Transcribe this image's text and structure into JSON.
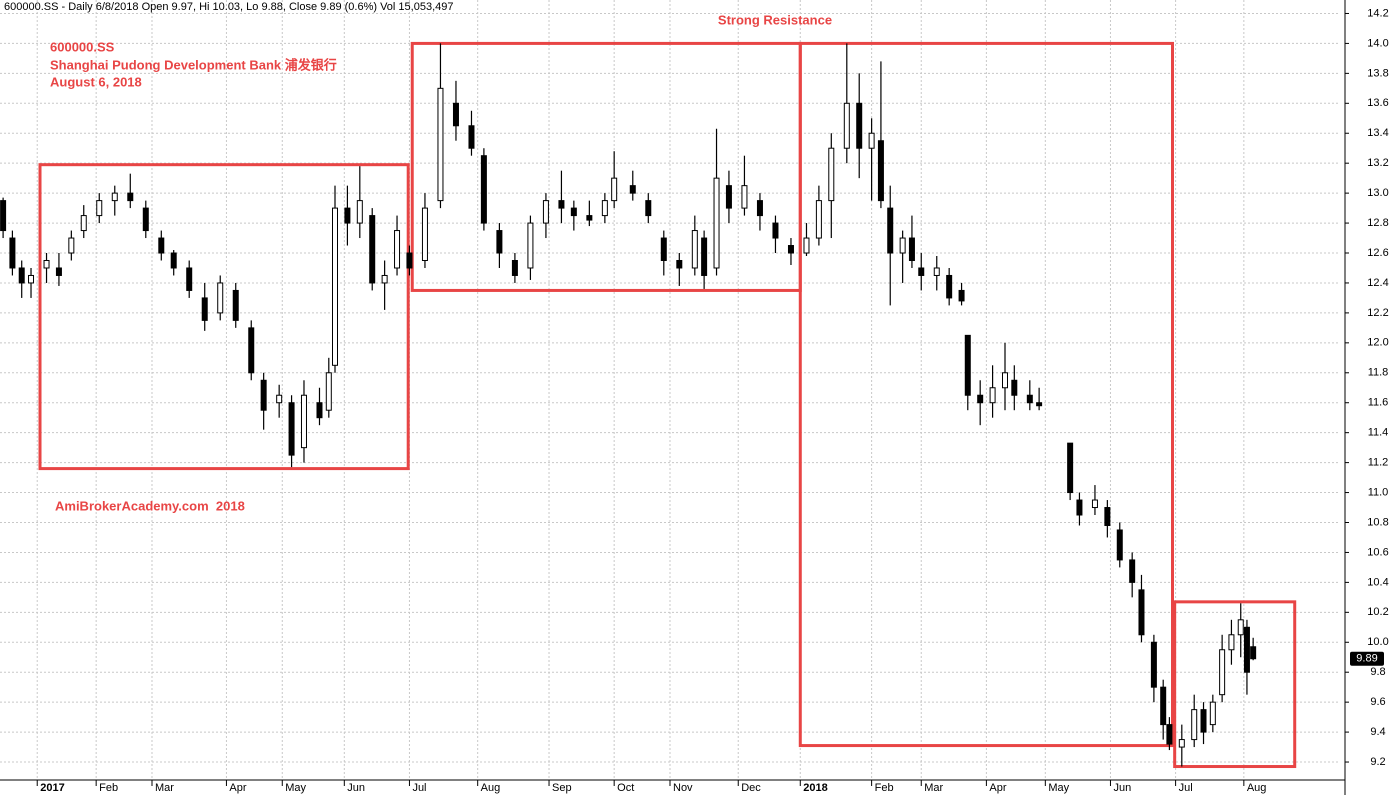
{
  "chart_data": {
    "type": "candlestick",
    "header": "600000.SS - Daily 6/8/2018 Open 9.97, Hi 10.03, Lo 9.88, Close 9.89 (0.6%) Vol 15,053,497",
    "title": "Strong Resistance",
    "annotations": [
      "600000.SS",
      "Shanghai Pudong Development Bank 浦发银行",
      "August 6, 2018"
    ],
    "watermark": "AmiBrokerAcademy.com  2018",
    "x": [
      1,
      4,
      7,
      10,
      15,
      19,
      23,
      27,
      32,
      37,
      42,
      47,
      52,
      56,
      61,
      66,
      71,
      76,
      81,
      85,
      90,
      94,
      98,
      103,
      106,
      108,
      112,
      116,
      120,
      124,
      128,
      132,
      137,
      142,
      147,
      152,
      156,
      161,
      166,
      171,
      176,
      181,
      185,
      190,
      195,
      198,
      204,
      209,
      214,
      219,
      224,
      227,
      231,
      235,
      240,
      245,
      250,
      255,
      260,
      264,
      268,
      273,
      277,
      281,
      284,
      287,
      291,
      294,
      297,
      302,
      306,
      310,
      312,
      316,
      320,
      324,
      327,
      332,
      335,
      345,
      348,
      353,
      357,
      361,
      365,
      368,
      372,
      375,
      377,
      381,
      385,
      388,
      391,
      394,
      397,
      400,
      402,
      404
    ],
    "open": [
      12.95,
      12.7,
      12.5,
      12.4,
      12.5,
      12.5,
      12.6,
      12.75,
      12.85,
      12.95,
      13.0,
      12.9,
      12.7,
      12.6,
      12.5,
      12.3,
      12.2,
      12.35,
      12.1,
      11.75,
      11.6,
      11.6,
      11.3,
      11.6,
      11.55,
      11.85,
      12.9,
      12.8,
      12.85,
      12.4,
      12.5,
      12.6,
      12.55,
      12.95,
      13.6,
      13.45,
      13.25,
      12.75,
      12.55,
      12.5,
      12.8,
      12.95,
      12.9,
      12.85,
      12.85,
      12.95,
      13.05,
      12.95,
      12.7,
      12.55,
      12.5,
      12.7,
      12.5,
      13.05,
      12.9,
      12.95,
      12.8,
      12.65,
      12.6,
      12.7,
      12.95,
      13.3,
      13.6,
      13.3,
      13.35,
      12.9,
      12.6,
      12.7,
      12.5,
      12.45,
      12.45,
      12.35,
      12.05,
      11.65,
      11.6,
      11.7,
      11.75,
      11.65,
      11.6,
      11.33,
      10.95,
      10.9,
      10.9,
      10.75,
      10.55,
      10.35,
      10.0,
      9.7,
      9.45,
      9.3,
      9.35,
      9.55,
      9.45,
      9.65,
      9.95,
      10.05,
      10.1,
      9.97
    ],
    "high": [
      12.97,
      12.75,
      12.55,
      12.5,
      12.6,
      12.6,
      12.75,
      12.92,
      13.0,
      13.05,
      13.13,
      12.95,
      12.75,
      12.62,
      12.55,
      12.4,
      12.45,
      12.4,
      12.15,
      11.8,
      11.72,
      11.65,
      11.75,
      11.7,
      11.9,
      13.05,
      13.05,
      13.18,
      12.9,
      12.55,
      12.85,
      12.65,
      13.0,
      14.0,
      13.75,
      13.55,
      13.3,
      12.8,
      12.6,
      12.85,
      13.0,
      13.15,
      12.95,
      12.95,
      13.0,
      13.28,
      13.15,
      13.0,
      12.75,
      12.6,
      12.85,
      12.75,
      13.43,
      13.15,
      13.25,
      13.0,
      12.85,
      12.7,
      12.8,
      13.05,
      13.4,
      14.0,
      13.8,
      13.5,
      13.88,
      13.05,
      12.75,
      12.85,
      12.6,
      12.58,
      12.5,
      12.4,
      12.05,
      11.75,
      11.85,
      12.0,
      11.85,
      11.75,
      11.7,
      11.33,
      11.0,
      11.05,
      10.95,
      10.8,
      10.6,
      10.45,
      10.05,
      9.75,
      9.5,
      9.45,
      9.65,
      9.6,
      9.65,
      10.05,
      10.15,
      10.26,
      10.15,
      10.03
    ],
    "low": [
      12.7,
      12.45,
      12.3,
      12.3,
      12.4,
      12.38,
      12.55,
      12.7,
      12.8,
      12.85,
      12.9,
      12.7,
      12.55,
      12.45,
      12.3,
      12.08,
      12.15,
      12.1,
      11.75,
      11.42,
      11.5,
      11.17,
      11.2,
      11.45,
      11.5,
      11.8,
      12.65,
      12.7,
      12.35,
      12.22,
      12.45,
      12.45,
      12.5,
      12.9,
      13.35,
      13.25,
      12.75,
      12.5,
      12.4,
      12.42,
      12.7,
      12.8,
      12.75,
      12.78,
      12.8,
      12.9,
      12.95,
      12.8,
      12.45,
      12.38,
      12.45,
      12.36,
      12.45,
      12.8,
      12.85,
      12.75,
      12.6,
      12.52,
      12.58,
      12.65,
      12.7,
      13.2,
      13.1,
      12.95,
      12.9,
      12.25,
      12.4,
      12.5,
      12.35,
      12.35,
      12.25,
      12.25,
      11.55,
      11.45,
      11.5,
      11.55,
      11.55,
      11.55,
      11.55,
      10.95,
      10.78,
      10.85,
      10.7,
      10.5,
      10.3,
      10.0,
      9.6,
      9.35,
      9.28,
      9.17,
      9.3,
      9.32,
      9.4,
      9.6,
      9.85,
      9.9,
      9.65,
      9.88
    ],
    "close": [
      12.75,
      12.5,
      12.4,
      12.45,
      12.55,
      12.45,
      12.7,
      12.85,
      12.95,
      13.0,
      12.95,
      12.75,
      12.6,
      12.5,
      12.35,
      12.15,
      12.4,
      12.15,
      11.8,
      11.55,
      11.65,
      11.25,
      11.65,
      11.5,
      11.8,
      12.9,
      12.8,
      12.95,
      12.4,
      12.45,
      12.75,
      12.5,
      12.9,
      13.7,
      13.45,
      13.3,
      12.8,
      12.6,
      12.45,
      12.8,
      12.95,
      12.9,
      12.85,
      12.82,
      12.95,
      13.1,
      13.0,
      12.85,
      12.55,
      12.5,
      12.75,
      12.45,
      13.1,
      12.9,
      13.05,
      12.85,
      12.7,
      12.6,
      12.7,
      12.95,
      13.3,
      13.6,
      13.3,
      13.4,
      12.95,
      12.6,
      12.7,
      12.55,
      12.45,
      12.5,
      12.3,
      12.28,
      11.65,
      11.6,
      11.7,
      11.8,
      11.65,
      11.6,
      11.58,
      11.0,
      10.85,
      10.95,
      10.78,
      10.55,
      10.4,
      10.05,
      9.7,
      9.45,
      9.32,
      9.35,
      9.55,
      9.4,
      9.6,
      9.95,
      10.05,
      10.15,
      9.8,
      9.89
    ],
    "last_price": 9.89,
    "zones": [
      {
        "x": [
          12.9,
          131.6
        ],
        "y": [
          11.16,
          13.19
        ]
      },
      {
        "x": [
          132.9,
          258
        ],
        "y": [
          12.35,
          14.0
        ]
      },
      {
        "x": [
          258,
          378
        ],
        "y": [
          9.31,
          14.0
        ]
      },
      {
        "x": [
          378.7,
          417.4
        ],
        "y": [
          9.17,
          10.27
        ]
      }
    ],
    "zone_color": "#e84545",
    "xlim": [
      0,
      432
    ],
    "xticks": [
      {
        "value": 12,
        "label": "2017"
      },
      {
        "value": 31,
        "label": "Feb"
      },
      {
        "value": 49,
        "label": "Mar"
      },
      {
        "value": 73,
        "label": "Apr"
      },
      {
        "value": 91,
        "label": "May"
      },
      {
        "value": 111,
        "label": "Jun"
      },
      {
        "value": 132,
        "label": "Jul"
      },
      {
        "value": 154,
        "label": "Aug"
      },
      {
        "value": 177,
        "label": "Sep"
      },
      {
        "value": 198,
        "label": "Oct"
      },
      {
        "value": 216,
        "label": "Nov"
      },
      {
        "value": 238,
        "label": "Dec"
      },
      {
        "value": 258,
        "label": "2018"
      },
      {
        "value": 281,
        "label": "Feb"
      },
      {
        "value": 297,
        "label": "Mar"
      },
      {
        "value": 318,
        "label": "Apr"
      },
      {
        "value": 337,
        "label": "May"
      },
      {
        "value": 358,
        "label": "Jun"
      },
      {
        "value": 379,
        "label": "Jul"
      },
      {
        "value": 401,
        "label": "Aug"
      }
    ],
    "ylim": [
      9.08,
      14.29
    ],
    "yticks": [
      9.2,
      9.4,
      9.6,
      9.8,
      {
        "value": 10,
        "label": "10.0"
      },
      10.2,
      10.4,
      10.6,
      10.8,
      {
        "value": 11,
        "label": "11.0"
      },
      11.2,
      11.4,
      11.6,
      11.8,
      {
        "value": 12,
        "label": "12.0"
      },
      12.2,
      12.4,
      12.6,
      12.8,
      {
        "value": 13,
        "label": "13.0"
      },
      13.2,
      13.4,
      13.6,
      13.8,
      {
        "value": 14,
        "label": "14.0"
      },
      14.2
    ],
    "grid": true
  }
}
